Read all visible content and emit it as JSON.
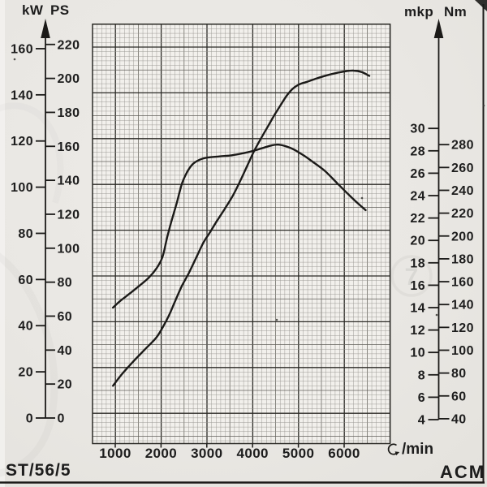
{
  "labels": {
    "left_unit_primary": "kW",
    "left_unit_secondary": "PS",
    "right_unit_primary": "mkp",
    "right_unit_secondary": "Nm",
    "rpm_unit": "/min",
    "footer_left": "ST/56/5",
    "footer_right": "ACM"
  },
  "colors": {
    "ink": "#1b1a18",
    "paper": "#eae8e4",
    "grid_fine": "#96948e",
    "grid_medium": "#63615b",
    "grid_heavy": "#2b2a26",
    "grid_bg": "#f2f0ec"
  },
  "chart_data": {
    "type": "line",
    "title": "",
    "x_unit": "U/min",
    "x_ticks": [
      1000,
      2000,
      3000,
      4000,
      5000,
      6000
    ],
    "x_range": [
      500,
      7070
    ],
    "grid": true,
    "legend": false,
    "axes": {
      "left": {
        "units": [
          "kW",
          "PS"
        ],
        "kw_ticks": [
          0,
          20,
          40,
          60,
          80,
          100,
          120,
          140,
          160
        ],
        "ps_ticks": [
          0,
          20,
          40,
          60,
          80,
          100,
          120,
          140,
          160,
          180,
          200,
          220
        ]
      },
      "right": {
        "units": [
          "mkp",
          "Nm"
        ],
        "mkp_ticks": [
          4,
          6,
          8,
          10,
          12,
          14,
          16,
          18,
          20,
          22,
          24,
          26,
          28,
          30
        ],
        "nm_ticks": [
          40,
          60,
          80,
          100,
          120,
          140,
          160,
          180,
          200,
          220,
          240,
          260,
          280
        ]
      }
    },
    "series": [
      {
        "name": "power",
        "axis": "left",
        "unit": "PS",
        "points": [
          [
            950,
            19
          ],
          [
            1150,
            26
          ],
          [
            1400,
            33.5
          ],
          [
            1650,
            40.5
          ],
          [
            1900,
            47.5
          ],
          [
            2070,
            55
          ],
          [
            2200,
            62
          ],
          [
            2310,
            69
          ],
          [
            2460,
            78
          ],
          [
            2610,
            85.5
          ],
          [
            2760,
            94
          ],
          [
            2920,
            103
          ],
          [
            3060,
            109
          ],
          [
            3220,
            116
          ],
          [
            3400,
            123.5
          ],
          [
            3580,
            131.5
          ],
          [
            3780,
            142.5
          ],
          [
            4020,
            156.5
          ],
          [
            4170,
            164
          ],
          [
            4340,
            172
          ],
          [
            4490,
            179
          ],
          [
            4630,
            185
          ],
          [
            4750,
            190
          ],
          [
            4880,
            194
          ],
          [
            5020,
            196.5
          ],
          [
            5190,
            198
          ],
          [
            5400,
            200
          ],
          [
            5620,
            201.8
          ],
          [
            5830,
            203.2
          ],
          [
            6030,
            204.2
          ],
          [
            6210,
            204.6
          ],
          [
            6380,
            203.8
          ],
          [
            6550,
            201.5
          ]
        ]
      },
      {
        "name": "torque",
        "axis": "right",
        "unit": "mkp",
        "points": [
          [
            950,
            14.0
          ],
          [
            1110,
            14.6
          ],
          [
            1330,
            15.3
          ],
          [
            1540,
            16.0
          ],
          [
            1740,
            16.7
          ],
          [
            1900,
            17.5
          ],
          [
            2030,
            18.5
          ],
          [
            2130,
            20.2
          ],
          [
            2220,
            21.6
          ],
          [
            2340,
            23.3
          ],
          [
            2460,
            25.1
          ],
          [
            2570,
            26.1
          ],
          [
            2690,
            26.8
          ],
          [
            2840,
            27.2
          ],
          [
            3010,
            27.4
          ],
          [
            3280,
            27.5
          ],
          [
            3550,
            27.6
          ],
          [
            3810,
            27.8
          ],
          [
            4020,
            28.0
          ],
          [
            4260,
            28.3
          ],
          [
            4430,
            28.5
          ],
          [
            4560,
            28.55
          ],
          [
            4730,
            28.4
          ],
          [
            4910,
            28.1
          ],
          [
            5110,
            27.6
          ],
          [
            5320,
            27.0
          ],
          [
            5580,
            26.2
          ],
          [
            5850,
            25.1
          ],
          [
            6120,
            24.0
          ],
          [
            6330,
            23.2
          ],
          [
            6470,
            22.7
          ]
        ]
      }
    ]
  }
}
